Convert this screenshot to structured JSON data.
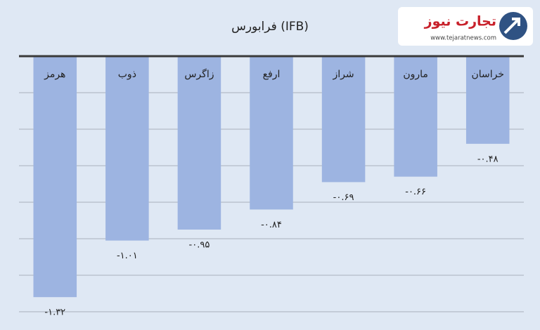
{
  "brand": {
    "name": "تجارت نیوز",
    "url": "www.tejaratnews.com"
  },
  "chart_data": {
    "type": "bar",
    "title": "فرابورس (IFB)",
    "categories": [
      "هرمز",
      "ذوب",
      "زاگرس",
      "ارفع",
      "شراز",
      "مارون",
      "خراسان"
    ],
    "values": [
      -1.32,
      -1.01,
      -0.95,
      -0.84,
      -0.69,
      -0.66,
      -0.48
    ],
    "value_labels": [
      "-۱.۳۲",
      "-۱.۰۱",
      "-۰.۹۵",
      "-۰.۸۴",
      "-۰.۶۹",
      "-۰.۶۶",
      "-۰.۴۸"
    ],
    "color": "#9db4e1",
    "ylim": [
      -1.4,
      0
    ],
    "yticks": [
      -1.4,
      -1.2,
      -1,
      -0.8,
      -0.6,
      -0.4,
      -0.2,
      0
    ],
    "grid": true
  }
}
